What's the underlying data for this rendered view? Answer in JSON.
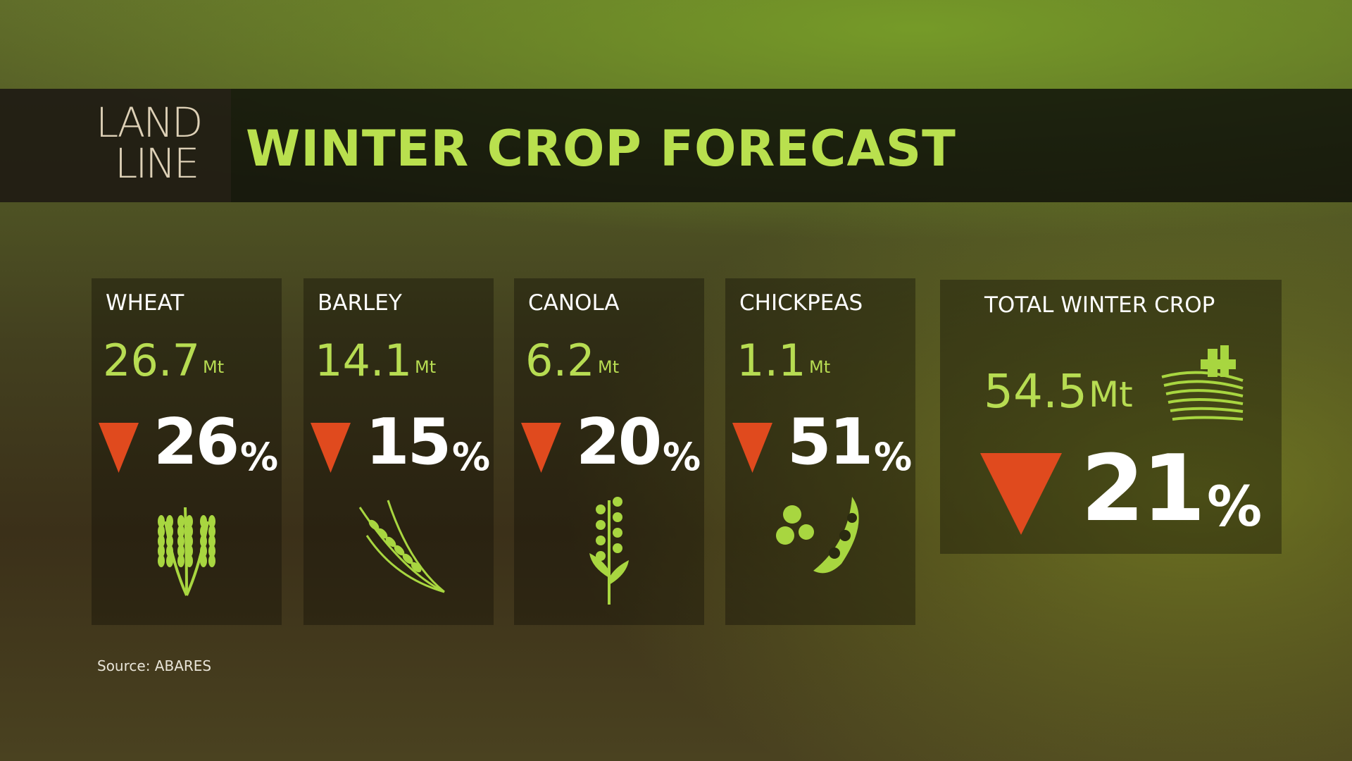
{
  "header": {
    "logo": [
      "LAND",
      "LINE"
    ],
    "title": "WINTER CROP FORECAST"
  },
  "cards": [
    {
      "name": "WHEAT",
      "amount": "26.7",
      "amount_unit": "Mt",
      "change": "26",
      "change_unit": "%"
    },
    {
      "name": "BARLEY",
      "amount": "14.1",
      "amount_unit": "Mt",
      "change": "15",
      "change_unit": "%"
    },
    {
      "name": "CANOLA",
      "amount": "6.2",
      "amount_unit": "Mt",
      "change": "20",
      "change_unit": "%"
    },
    {
      "name": "CHICKPEAS",
      "amount": "1.1",
      "amount_unit": "Mt",
      "change": "51",
      "change_unit": "%"
    }
  ],
  "total": {
    "name": "TOTAL WINTER CROP",
    "amount": "54.5",
    "amount_unit": "Mt",
    "change": "21",
    "change_unit": "%"
  },
  "source": "Source: ABARES"
}
